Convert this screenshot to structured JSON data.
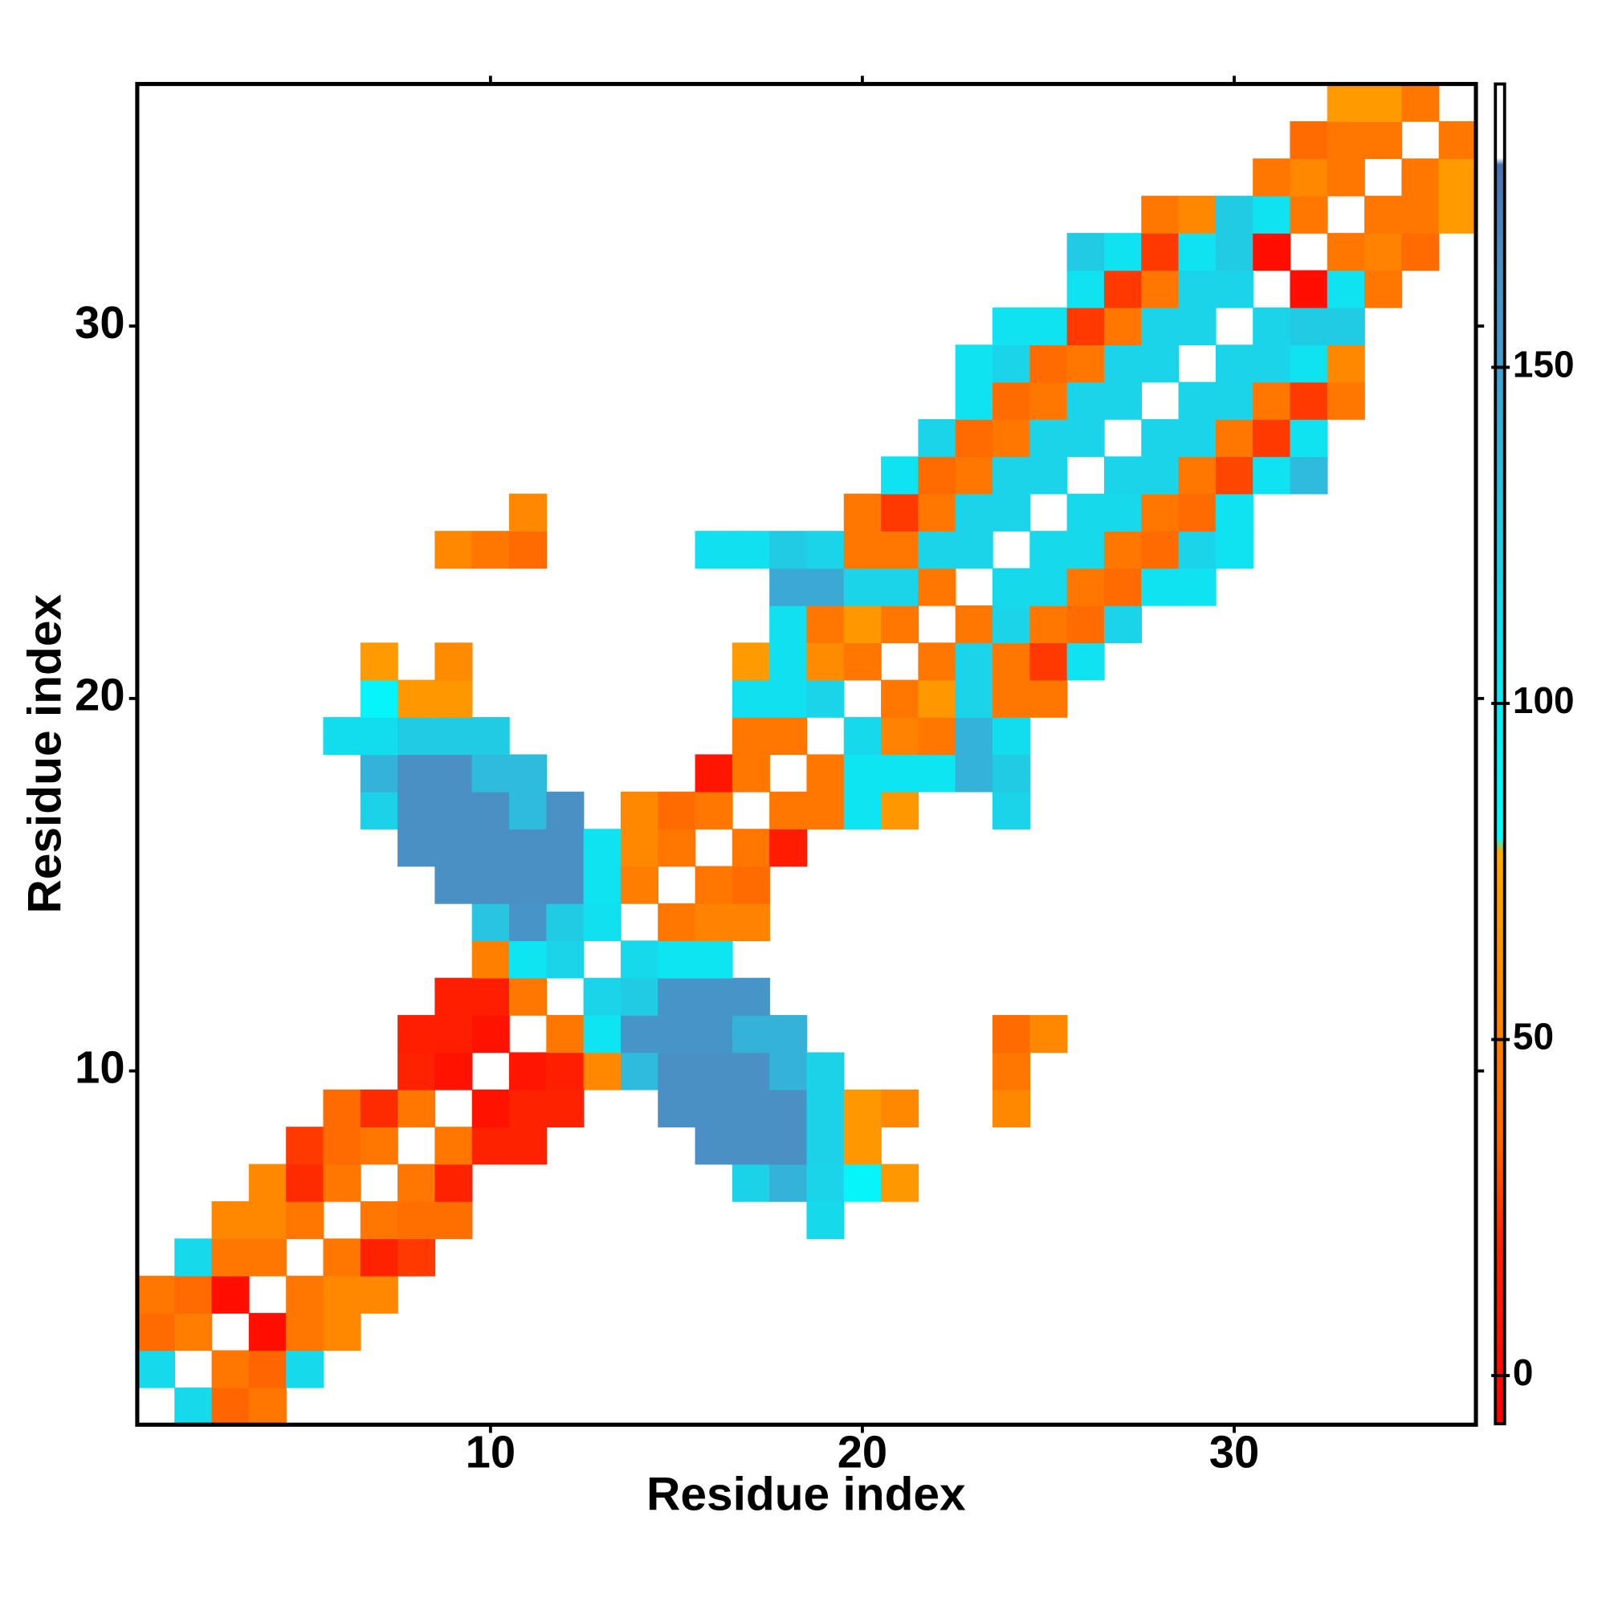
{
  "chart_data": {
    "type": "heatmap",
    "xlabel": "Residue index",
    "ylabel": "Residue index",
    "xlim": [
      0.5,
      36.5
    ],
    "ylim": [
      0.5,
      36.5
    ],
    "xticks": [
      10,
      20,
      30
    ],
    "yticks": [
      10,
      20,
      30
    ],
    "colorbar_lim": [
      -7,
      192
    ],
    "colorbar_ticks": [
      0,
      50,
      100,
      150
    ],
    "colorscale": [
      [
        -7,
        "#ff0000"
      ],
      [
        20,
        "#ff2200"
      ],
      [
        35,
        "#ff6600"
      ],
      [
        50,
        "#ff8000"
      ],
      [
        78,
        "#ffaa00"
      ],
      [
        80,
        "#00ffff"
      ],
      [
        110,
        "#10e0f0"
      ],
      [
        130,
        "#28c4e0"
      ],
      [
        150,
        "#40a0d0"
      ],
      [
        165,
        "#4a90c4"
      ],
      [
        180,
        "#4a72b0"
      ],
      [
        181,
        "#ffffff"
      ],
      [
        192,
        "#ffffff"
      ]
    ],
    "z": [
      [
        null,
        115,
        35,
        45,
        null,
        null,
        null,
        null,
        null,
        null,
        null,
        null,
        null,
        null,
        null,
        null,
        null,
        null,
        null,
        null,
        null,
        null,
        null,
        null,
        null,
        null,
        null,
        null,
        null,
        null,
        null,
        null,
        null,
        null,
        null,
        null
      ],
      [
        115,
        null,
        45,
        35,
        115,
        null,
        null,
        null,
        null,
        null,
        null,
        null,
        null,
        null,
        null,
        null,
        null,
        null,
        null,
        null,
        null,
        null,
        null,
        null,
        null,
        null,
        null,
        null,
        null,
        null,
        null,
        null,
        null,
        null,
        null,
        null
      ],
      [
        38,
        48,
        null,
        5,
        45,
        55,
        null,
        null,
        null,
        null,
        null,
        null,
        null,
        null,
        null,
        null,
        null,
        null,
        null,
        null,
        null,
        null,
        null,
        null,
        null,
        null,
        null,
        null,
        null,
        null,
        null,
        null,
        null,
        null,
        null,
        null
      ],
      [
        45,
        38,
        5,
        null,
        45,
        55,
        55,
        null,
        null,
        null,
        null,
        null,
        null,
        null,
        null,
        null,
        null,
        null,
        null,
        null,
        null,
        null,
        null,
        null,
        null,
        null,
        null,
        null,
        null,
        null,
        null,
        null,
        null,
        null,
        null,
        null
      ],
      [
        null,
        115,
        45,
        45,
        null,
        45,
        20,
        25,
        null,
        null,
        null,
        null,
        null,
        null,
        null,
        null,
        null,
        null,
        null,
        null,
        null,
        null,
        null,
        null,
        null,
        null,
        null,
        null,
        null,
        null,
        null,
        null,
        null,
        null,
        null,
        null
      ],
      [
        null,
        null,
        55,
        55,
        45,
        null,
        45,
        40,
        40,
        null,
        null,
        null,
        null,
        null,
        null,
        null,
        null,
        null,
        115,
        null,
        null,
        null,
        null,
        null,
        null,
        null,
        null,
        null,
        null,
        null,
        null,
        null,
        null,
        null,
        null,
        null
      ],
      [
        null,
        null,
        null,
        55,
        22,
        45,
        null,
        45,
        20,
        null,
        null,
        null,
        null,
        null,
        null,
        null,
        120,
        140,
        118,
        90,
        65,
        null,
        null,
        null,
        null,
        null,
        null,
        null,
        null,
        null,
        null,
        null,
        null,
        null,
        null,
        null
      ],
      [
        null,
        null,
        null,
        null,
        25,
        38,
        45,
        null,
        45,
        20,
        20,
        null,
        null,
        null,
        null,
        165,
        165,
        165,
        120,
        65,
        null,
        null,
        null,
        null,
        null,
        null,
        null,
        null,
        null,
        null,
        null,
        null,
        null,
        null,
        null,
        null
      ],
      [
        null,
        null,
        null,
        null,
        null,
        38,
        22,
        45,
        null,
        8,
        20,
        20,
        null,
        null,
        165,
        165,
        165,
        165,
        120,
        65,
        55,
        null,
        null,
        55,
        null,
        null,
        null,
        null,
        null,
        null,
        null,
        null,
        null,
        null,
        null,
        null
      ],
      [
        null,
        null,
        null,
        null,
        null,
        null,
        null,
        20,
        8,
        null,
        10,
        18,
        55,
        135,
        165,
        165,
        165,
        140,
        120,
        null,
        null,
        null,
        null,
        45,
        null,
        null,
        null,
        null,
        null,
        null,
        null,
        null,
        null,
        null,
        null,
        null
      ],
      [
        null,
        null,
        null,
        null,
        null,
        null,
        null,
        18,
        18,
        8,
        null,
        45,
        105,
        160,
        160,
        160,
        140,
        140,
        null,
        null,
        null,
        null,
        null,
        38,
        55,
        null,
        null,
        null,
        null,
        null,
        null,
        null,
        null,
        null,
        null,
        null
      ],
      [
        null,
        null,
        null,
        null,
        null,
        null,
        null,
        null,
        18,
        18,
        45,
        null,
        118,
        125,
        160,
        160,
        160,
        null,
        null,
        null,
        null,
        null,
        null,
        null,
        null,
        null,
        null,
        null,
        null,
        null,
        null,
        null,
        null,
        null,
        null,
        null
      ],
      [
        null,
        null,
        null,
        null,
        null,
        null,
        null,
        null,
        null,
        50,
        105,
        118,
        null,
        115,
        105,
        105,
        null,
        null,
        null,
        null,
        null,
        null,
        null,
        null,
        null,
        null,
        null,
        null,
        null,
        null,
        null,
        null,
        null,
        null,
        null,
        null
      ],
      [
        null,
        null,
        null,
        null,
        null,
        null,
        null,
        null,
        null,
        130,
        160,
        125,
        110,
        null,
        45,
        52,
        52,
        null,
        null,
        null,
        null,
        null,
        null,
        null,
        null,
        null,
        null,
        null,
        null,
        null,
        null,
        null,
        null,
        null,
        null,
        null
      ],
      [
        null,
        null,
        null,
        null,
        null,
        null,
        null,
        null,
        165,
        165,
        165,
        165,
        108,
        48,
        null,
        45,
        38,
        null,
        null,
        null,
        null,
        null,
        null,
        null,
        null,
        null,
        null,
        null,
        null,
        null,
        null,
        null,
        null,
        null,
        null,
        null
      ],
      [
        null,
        null,
        null,
        null,
        null,
        null,
        null,
        165,
        165,
        165,
        165,
        165,
        108,
        55,
        45,
        null,
        45,
        15,
        null,
        null,
        null,
        null,
        null,
        null,
        null,
        null,
        null,
        null,
        null,
        null,
        null,
        null,
        null,
        null,
        null,
        null
      ],
      [
        null,
        null,
        null,
        null,
        null,
        null,
        120,
        165,
        165,
        165,
        135,
        165,
        null,
        55,
        38,
        45,
        null,
        45,
        45,
        105,
        65,
        null,
        null,
        118,
        null,
        null,
        null,
        null,
        null,
        null,
        null,
        null,
        null,
        null,
        null,
        null
      ],
      [
        null,
        null,
        null,
        null,
        null,
        null,
        140,
        165,
        165,
        135,
        135,
        null,
        null,
        null,
        null,
        10,
        45,
        null,
        45,
        105,
        105,
        105,
        140,
        125,
        null,
        null,
        null,
        null,
        null,
        null,
        null,
        null,
        null,
        null,
        null,
        null
      ],
      [
        null,
        null,
        null,
        null,
        null,
        112,
        112,
        125,
        125,
        125,
        null,
        null,
        null,
        null,
        null,
        null,
        45,
        45,
        null,
        115,
        52,
        45,
        140,
        112,
        null,
        null,
        null,
        null,
        null,
        null,
        null,
        null,
        null,
        null,
        null,
        null
      ],
      [
        null,
        null,
        null,
        null,
        null,
        null,
        90,
        65,
        65,
        null,
        null,
        null,
        null,
        null,
        null,
        null,
        110,
        110,
        118,
        null,
        45,
        65,
        118,
        45,
        45,
        null,
        null,
        null,
        null,
        null,
        null,
        null,
        null,
        null,
        null,
        null
      ],
      [
        null,
        null,
        null,
        null,
        null,
        null,
        68,
        null,
        58,
        null,
        null,
        null,
        null,
        null,
        null,
        null,
        68,
        110,
        58,
        45,
        null,
        45,
        118,
        45,
        25,
        108,
        null,
        null,
        null,
        null,
        null,
        null,
        null,
        null,
        null,
        null
      ],
      [
        null,
        null,
        null,
        null,
        null,
        null,
        null,
        null,
        null,
        null,
        null,
        null,
        null,
        null,
        null,
        null,
        null,
        110,
        45,
        65,
        45,
        null,
        45,
        118,
        45,
        38,
        118,
        null,
        null,
        null,
        null,
        null,
        null,
        null,
        null,
        null
      ],
      [
        null,
        null,
        null,
        null,
        null,
        null,
        null,
        null,
        null,
        null,
        null,
        null,
        null,
        null,
        null,
        null,
        null,
        145,
        145,
        118,
        118,
        45,
        null,
        115,
        115,
        45,
        38,
        108,
        108,
        null,
        null,
        null,
        null,
        null,
        null,
        null
      ],
      [
        null,
        null,
        null,
        null,
        null,
        null,
        null,
        null,
        55,
        45,
        38,
        null,
        null,
        null,
        null,
        110,
        110,
        125,
        118,
        45,
        45,
        118,
        118,
        null,
        115,
        115,
        45,
        38,
        118,
        108,
        null,
        null,
        null,
        null,
        null,
        null
      ],
      [
        null,
        null,
        null,
        null,
        null,
        null,
        null,
        null,
        null,
        null,
        55,
        null,
        null,
        null,
        null,
        null,
        null,
        null,
        null,
        45,
        25,
        45,
        118,
        118,
        null,
        115,
        115,
        45,
        38,
        108,
        null,
        null,
        null,
        null,
        null,
        null
      ],
      [
        null,
        null,
        null,
        null,
        null,
        null,
        null,
        null,
        null,
        null,
        null,
        null,
        null,
        null,
        null,
        null,
        null,
        null,
        null,
        null,
        108,
        38,
        45,
        118,
        118,
        null,
        118,
        118,
        45,
        28,
        108,
        135,
        null,
        null,
        null,
        null
      ],
      [
        null,
        null,
        null,
        null,
        null,
        null,
        null,
        null,
        null,
        null,
        null,
        null,
        null,
        null,
        null,
        null,
        null,
        null,
        null,
        null,
        null,
        118,
        38,
        45,
        118,
        118,
        null,
        118,
        118,
        45,
        25,
        108,
        null,
        null,
        null,
        null
      ],
      [
        null,
        null,
        null,
        null,
        null,
        null,
        null,
        null,
        null,
        null,
        null,
        null,
        null,
        null,
        null,
        null,
        null,
        null,
        null,
        null,
        null,
        null,
        108,
        38,
        45,
        118,
        118,
        null,
        118,
        118,
        45,
        25,
        45,
        null,
        null,
        null
      ],
      [
        null,
        null,
        null,
        null,
        null,
        null,
        null,
        null,
        null,
        null,
        null,
        null,
        null,
        null,
        null,
        null,
        null,
        null,
        null,
        null,
        null,
        null,
        108,
        118,
        38,
        45,
        118,
        118,
        null,
        118,
        118,
        108,
        55,
        null,
        null,
        null
      ],
      [
        null,
        null,
        null,
        null,
        null,
        null,
        null,
        null,
        null,
        null,
        null,
        null,
        null,
        null,
        null,
        null,
        null,
        null,
        null,
        null,
        null,
        null,
        null,
        108,
        108,
        25,
        45,
        118,
        118,
        null,
        118,
        125,
        125,
        null,
        null,
        null
      ],
      [
        null,
        null,
        null,
        null,
        null,
        null,
        null,
        null,
        null,
        null,
        null,
        null,
        null,
        null,
        null,
        null,
        null,
        null,
        null,
        null,
        null,
        null,
        null,
        null,
        null,
        108,
        25,
        45,
        118,
        118,
        null,
        5,
        108,
        45,
        null,
        null
      ],
      [
        null,
        null,
        null,
        null,
        null,
        null,
        null,
        null,
        null,
        null,
        null,
        null,
        null,
        null,
        null,
        null,
        null,
        null,
        null,
        null,
        null,
        null,
        null,
        null,
        null,
        125,
        108,
        25,
        108,
        125,
        5,
        null,
        45,
        52,
        38,
        null
      ],
      [
        null,
        null,
        null,
        null,
        null,
        null,
        null,
        null,
        null,
        null,
        null,
        null,
        null,
        null,
        null,
        null,
        null,
        null,
        null,
        null,
        null,
        null,
        null,
        null,
        null,
        null,
        null,
        45,
        55,
        125,
        108,
        45,
        null,
        45,
        45,
        68
      ],
      [
        null,
        null,
        null,
        null,
        null,
        null,
        null,
        null,
        null,
        null,
        null,
        null,
        null,
        null,
        null,
        null,
        null,
        null,
        null,
        null,
        null,
        null,
        null,
        null,
        null,
        null,
        null,
        null,
        null,
        null,
        45,
        55,
        45,
        null,
        45,
        68
      ],
      [
        null,
        null,
        null,
        null,
        null,
        null,
        null,
        null,
        null,
        null,
        null,
        null,
        null,
        null,
        null,
        null,
        null,
        null,
        null,
        null,
        null,
        null,
        null,
        null,
        null,
        null,
        null,
        null,
        null,
        null,
        null,
        38,
        45,
        45,
        null,
        45
      ],
      [
        null,
        null,
        null,
        null,
        null,
        null,
        null,
        null,
        null,
        null,
        null,
        null,
        null,
        null,
        null,
        null,
        null,
        null,
        null,
        null,
        null,
        null,
        null,
        null,
        null,
        null,
        null,
        null,
        null,
        null,
        null,
        null,
        68,
        68,
        45,
        null
      ]
    ]
  }
}
